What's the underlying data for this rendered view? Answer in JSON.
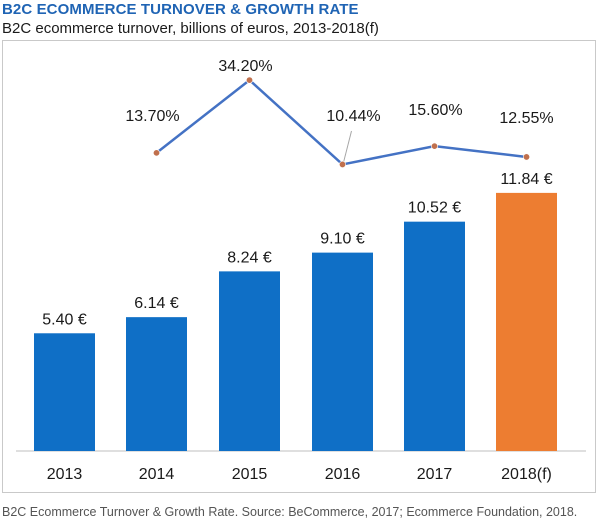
{
  "header": {
    "title": "B2C ECOMMERCE TURNOVER & GROWTH RATE",
    "subtitle": "B2C ecommerce turnover, billions of euros, 2013-2018(f)"
  },
  "footer": {
    "caption": "B2C Ecommerce Turnover & Growth Rate. Source: BeCommerce, 2017; Ecommerce Foundation, 2018."
  },
  "chart_data": [
    {
      "type": "bar",
      "categories": [
        "2013",
        "2014",
        "2015",
        "2016",
        "2017",
        "2018(f)"
      ],
      "values": [
        5.4,
        6.14,
        8.24,
        9.1,
        10.52,
        11.84
      ],
      "value_labels": [
        "5.40 €",
        "6.14 €",
        "8.24 €",
        "9.10 €",
        "10.52 €",
        "11.84 €"
      ],
      "bar_colors": [
        "#0f6fc6",
        "#0f6fc6",
        "#0f6fc6",
        "#0f6fc6",
        "#0f6fc6",
        "#ed7d31"
      ],
      "ylim": [
        0,
        13
      ],
      "title": "",
      "xlabel": "",
      "ylabel": ""
    },
    {
      "type": "line",
      "categories": [
        "2014",
        "2015",
        "2016",
        "2017",
        "2018(f)"
      ],
      "values": [
        13.7,
        34.2,
        10.44,
        15.6,
        12.55
      ],
      "value_labels": [
        "13.70%",
        "34.20%",
        "10.44%",
        "15.60%",
        "12.55%"
      ],
      "line_color": "#4472c4",
      "marker_color": "#c0704d",
      "ylim": [
        10,
        35
      ]
    }
  ]
}
